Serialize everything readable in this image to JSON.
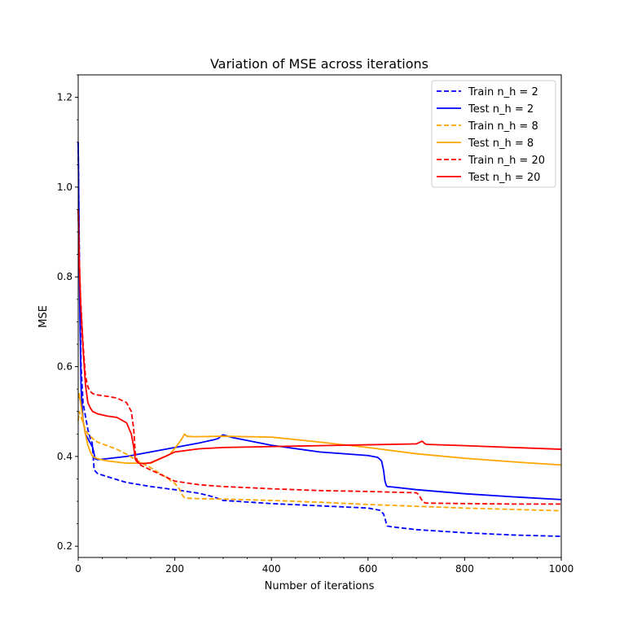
{
  "chart_data": {
    "type": "line",
    "title": "Variation of MSE across iterations",
    "xlabel": "Number of iterations",
    "ylabel": "MSE",
    "xlim": [
      0,
      1000
    ],
    "ylim": [
      0.175,
      1.25
    ],
    "x_ticks": [
      0,
      200,
      400,
      600,
      800,
      1000
    ],
    "y_ticks": [
      0.2,
      0.4,
      0.6,
      0.8,
      1.0,
      1.2
    ],
    "x_tick_labels": [
      "0",
      "200",
      "400",
      "600",
      "800",
      "1000"
    ],
    "y_tick_labels": [
      "0.2",
      "0.4",
      "0.6",
      "0.8",
      "1.0",
      "1.2"
    ],
    "grid": false,
    "legend_position": "top-right",
    "series": [
      {
        "name": "Train n_h = 2",
        "color": "#0000ff",
        "dash": "dashed",
        "x": [
          0,
          3,
          6,
          10,
          15,
          20,
          25,
          29,
          31,
          33,
          40,
          60,
          100,
          150,
          200,
          250,
          280,
          300,
          400,
          500,
          600,
          625,
          632,
          635,
          638,
          640,
          650,
          700,
          800,
          900,
          1000
        ],
        "y": [
          1.1,
          0.8,
          0.6,
          0.52,
          0.49,
          0.46,
          0.44,
          0.43,
          0.4,
          0.37,
          0.362,
          0.355,
          0.342,
          0.333,
          0.326,
          0.318,
          0.31,
          0.302,
          0.295,
          0.29,
          0.285,
          0.28,
          0.272,
          0.262,
          0.25,
          0.245,
          0.243,
          0.237,
          0.23,
          0.225,
          0.222
        ]
      },
      {
        "name": "Test n_h = 2",
        "color": "#0000ff",
        "dash": "solid",
        "x": [
          0,
          3,
          6,
          10,
          15,
          20,
          25,
          30,
          32,
          35,
          40,
          60,
          100,
          150,
          200,
          250,
          280,
          290,
          295,
          300,
          320,
          400,
          500,
          600,
          620,
          628,
          632,
          635,
          638,
          640,
          650,
          700,
          800,
          900,
          1000
        ],
        "y": [
          1.1,
          0.75,
          0.55,
          0.48,
          0.45,
          0.44,
          0.43,
          0.42,
          0.41,
          0.395,
          0.393,
          0.395,
          0.4,
          0.41,
          0.42,
          0.43,
          0.437,
          0.44,
          0.445,
          0.448,
          0.442,
          0.425,
          0.41,
          0.402,
          0.398,
          0.39,
          0.37,
          0.345,
          0.335,
          0.333,
          0.332,
          0.326,
          0.317,
          0.31,
          0.304
        ]
      },
      {
        "name": "Train n_h = 8",
        "color": "#ffa500",
        "dash": "dashed",
        "x": [
          0,
          2,
          5,
          10,
          15,
          20,
          30,
          40,
          60,
          80,
          100,
          120,
          150,
          180,
          200,
          210,
          215,
          220,
          225,
          250,
          300,
          400,
          500,
          600,
          700,
          800,
          900,
          1000
        ],
        "y": [
          0.48,
          0.5,
          0.49,
          0.475,
          0.46,
          0.45,
          0.44,
          0.432,
          0.424,
          0.416,
          0.405,
          0.392,
          0.375,
          0.355,
          0.34,
          0.327,
          0.315,
          0.308,
          0.307,
          0.306,
          0.305,
          0.302,
          0.298,
          0.293,
          0.289,
          0.285,
          0.282,
          0.279
        ]
      },
      {
        "name": "Test n_h = 8",
        "color": "#ffa500",
        "dash": "solid",
        "x": [
          0,
          2,
          5,
          10,
          15,
          20,
          25,
          30,
          40,
          60,
          100,
          150,
          190,
          205,
          215,
          220,
          225,
          240,
          300,
          400,
          500,
          600,
          700,
          800,
          900,
          1000
        ],
        "y": [
          0.53,
          0.54,
          0.52,
          0.48,
          0.45,
          0.425,
          0.41,
          0.4,
          0.395,
          0.39,
          0.385,
          0.385,
          0.405,
          0.425,
          0.44,
          0.45,
          0.445,
          0.444,
          0.445,
          0.443,
          0.432,
          0.42,
          0.406,
          0.396,
          0.388,
          0.381
        ]
      },
      {
        "name": "Train n_h = 20",
        "color": "#ff0000",
        "dash": "dashed",
        "x": [
          0,
          2,
          5,
          10,
          15,
          20,
          25,
          30,
          40,
          60,
          80,
          100,
          110,
          115,
          118,
          122,
          130,
          150,
          180,
          200,
          250,
          300,
          400,
          500,
          600,
          700,
          705,
          710,
          715,
          720,
          800,
          900,
          1000
        ],
        "y": [
          0.95,
          0.85,
          0.75,
          0.65,
          0.58,
          0.555,
          0.545,
          0.54,
          0.537,
          0.534,
          0.53,
          0.52,
          0.5,
          0.46,
          0.41,
          0.39,
          0.38,
          0.37,
          0.355,
          0.345,
          0.337,
          0.333,
          0.328,
          0.324,
          0.322,
          0.319,
          0.315,
          0.305,
          0.298,
          0.296,
          0.295,
          0.294,
          0.294
        ]
      },
      {
        "name": "Test n_h = 20",
        "color": "#ff0000",
        "dash": "solid",
        "x": [
          0,
          2,
          5,
          10,
          15,
          20,
          25,
          30,
          40,
          60,
          80,
          100,
          110,
          115,
          118,
          120,
          125,
          135,
          150,
          180,
          200,
          250,
          300,
          400,
          500,
          600,
          700,
          708,
          712,
          716,
          720,
          800,
          900,
          1000
        ],
        "y": [
          0.95,
          0.84,
          0.74,
          0.64,
          0.56,
          0.52,
          0.508,
          0.5,
          0.495,
          0.49,
          0.487,
          0.475,
          0.45,
          0.42,
          0.395,
          0.39,
          0.385,
          0.384,
          0.386,
          0.4,
          0.41,
          0.417,
          0.42,
          0.422,
          0.424,
          0.426,
          0.428,
          0.432,
          0.434,
          0.43,
          0.427,
          0.424,
          0.42,
          0.416
        ]
      }
    ]
  }
}
